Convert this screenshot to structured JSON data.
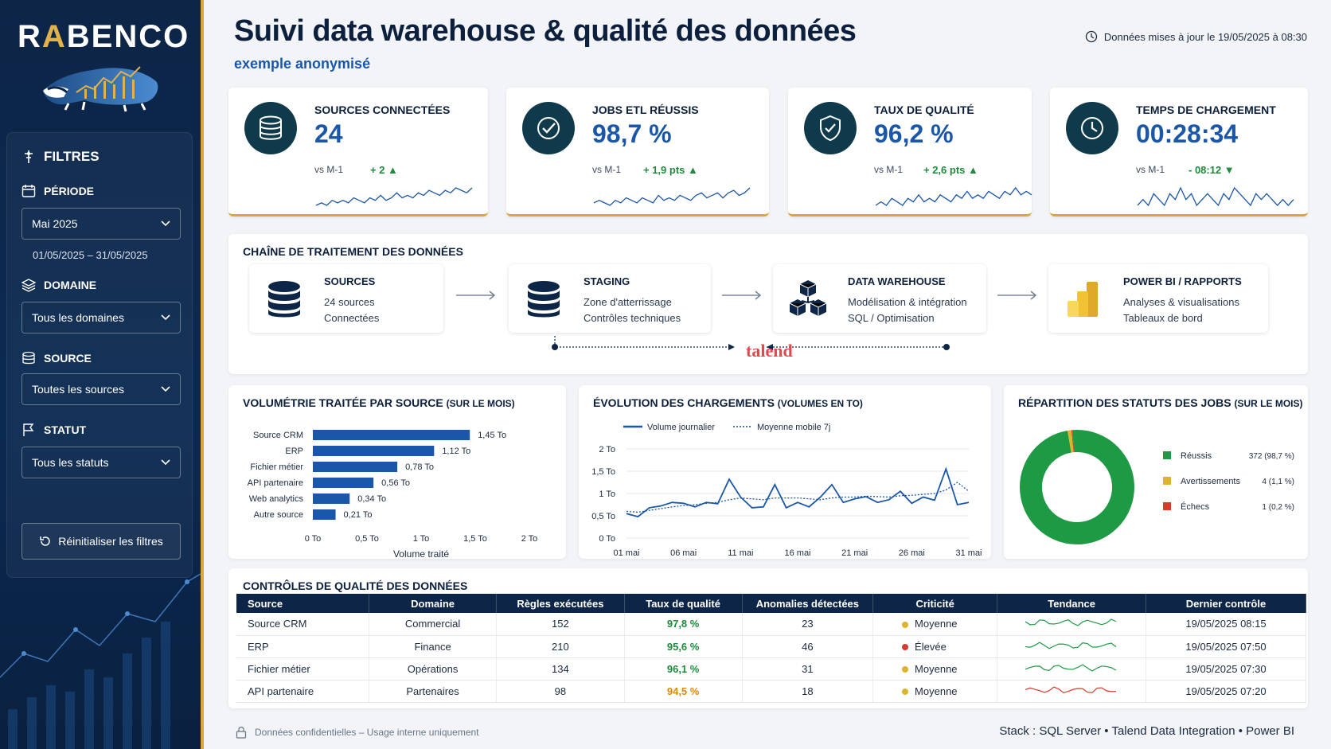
{
  "brand": {
    "logo_pre": "R",
    "logo_accent": "A",
    "logo_post": "BENCO",
    "accent_color": "#d9a83a",
    "navy": "#0d2547"
  },
  "header": {
    "title": "Suivi data warehouse & qualité des données",
    "subtitle": "exemple anonymisé",
    "updated": "Données mises à jour le 19/05/2025 à 08:30"
  },
  "filters": {
    "title": "FILTRES",
    "period_label": "PÉRIODE",
    "period_value": "Mai 2025",
    "period_range": "01/05/2025 – 31/05/2025",
    "domain_label": "DOMAINE",
    "domain_value": "Tous les domaines",
    "source_label": "SOURCE",
    "source_value": "Toutes les sources",
    "status_label": "STATUT",
    "status_value": "Tous les statuts",
    "reset_label": "Réinitialiser les filtres"
  },
  "kpis": [
    {
      "label": "SOURCES CONNECTÉES",
      "value": "24",
      "vs": "vs M-1",
      "delta": "+ 2 ▲",
      "icon": "database-icon",
      "spark": [
        3,
        4,
        3,
        5,
        4,
        5,
        4,
        6,
        5,
        4,
        6,
        5,
        7,
        5,
        6,
        8,
        6,
        7,
        6,
        8,
        7,
        9,
        8,
        7,
        9,
        8,
        10,
        9,
        8,
        10
      ]
    },
    {
      "label": "JOBS ETL RÉUSSIS",
      "value": "98,7 %",
      "vs": "vs M-1",
      "delta": "+ 1,9 pts ▲",
      "icon": "check-circle-icon",
      "spark": [
        4,
        5,
        4,
        3,
        5,
        4,
        6,
        5,
        4,
        6,
        5,
        4,
        7,
        5,
        6,
        5,
        7,
        6,
        5,
        7,
        8,
        6,
        7,
        8,
        6,
        8,
        9,
        7,
        8,
        10
      ]
    },
    {
      "label": "TAUX DE QUALITÉ",
      "value": "96,2 %",
      "vs": "vs M-1",
      "delta": "+ 2,6 pts ▲",
      "icon": "shield-check-icon",
      "spark": [
        5,
        6,
        5,
        7,
        6,
        5,
        7,
        6,
        8,
        6,
        7,
        6,
        8,
        7,
        6,
        8,
        7,
        9,
        7,
        8,
        7,
        9,
        8,
        7,
        9,
        8,
        10,
        8,
        9,
        8
      ]
    },
    {
      "label": "TEMPS DE CHARGEMENT",
      "value": "00:28:34",
      "vs": "vs M-1",
      "delta": "- 08:12 ▼",
      "icon": "clock-icon",
      "spark": [
        6,
        7,
        6,
        8,
        7,
        6,
        8,
        7,
        9,
        7,
        8,
        6,
        7,
        8,
        7,
        6,
        8,
        7,
        9,
        8,
        7,
        6,
        8,
        7,
        8,
        7,
        6,
        7,
        6,
        7
      ]
    }
  ],
  "pipeline": {
    "title": "CHAÎNE DE TRAITEMENT DES DONNÉES",
    "steps": [
      {
        "title": "SOURCES",
        "line1": "24 sources",
        "line2": "Connectées",
        "icon": "database-icon"
      },
      {
        "title": "STAGING",
        "line1": "Zone d'atterrissage",
        "line2": "Contrôles techniques",
        "icon": "database-icon"
      },
      {
        "title": "DATA WAREHOUSE",
        "line1": "Modélisation & intégration",
        "line2": "SQL / Optimisation",
        "icon": "cubes-icon"
      },
      {
        "title": "POWER BI / RAPPORTS",
        "line1": "Analyses & visualisations",
        "line2": "Tableaux de bord",
        "icon": "powerbi-icon"
      }
    ],
    "talend": "talend"
  },
  "chart_data": [
    {
      "type": "bar",
      "title": "VOLUMÉTRIE TRAITÉE PAR SOURCE",
      "title_suffix": "(SUR LE MOIS)",
      "xlabel": "Volume traité",
      "orientation": "horizontal",
      "categories": [
        "Source CRM",
        "ERP",
        "Fichier métier",
        "API partenaire",
        "Web analytics",
        "Autre source"
      ],
      "values": [
        1.45,
        1.12,
        0.78,
        0.56,
        0.34,
        0.21
      ],
      "value_labels": [
        "1,45 To",
        "1,12 To",
        "0,78 To",
        "0,56 To",
        "0,34 To",
        "0,21 To"
      ],
      "xticks": [
        "0 To",
        "0,5 To",
        "1 To",
        "1,5 To",
        "2 To"
      ],
      "xlim": [
        0,
        2
      ]
    },
    {
      "type": "line",
      "title": "ÉVOLUTION DES CHARGEMENTS",
      "title_suffix": "(VOLUMES EN TO)",
      "series": [
        {
          "name": "Volume journalier",
          "values": [
            0.55,
            0.48,
            0.68,
            0.72,
            0.8,
            0.78,
            0.7,
            0.8,
            0.77,
            1.32,
            0.92,
            0.68,
            0.7,
            1.2,
            0.68,
            0.8,
            0.7,
            0.92,
            1.2,
            0.8,
            0.88,
            0.93,
            0.8,
            0.86,
            1.05,
            0.78,
            0.92,
            0.85,
            1.55,
            0.75,
            0.8
          ]
        },
        {
          "name": "Moyenne mobile 7j",
          "values": [
            0.6,
            0.58,
            0.62,
            0.66,
            0.7,
            0.73,
            0.75,
            0.78,
            0.8,
            0.86,
            0.9,
            0.88,
            0.86,
            0.9,
            0.9,
            0.9,
            0.88,
            0.86,
            0.9,
            0.92,
            0.92,
            0.94,
            0.93,
            0.92,
            0.95,
            0.96,
            0.98,
            1.0,
            1.08,
            1.25,
            1.05
          ]
        }
      ],
      "xticks": [
        "01 mai",
        "06 mai",
        "11 mai",
        "16 mai",
        "21 mai",
        "26 mai",
        "31 mai"
      ],
      "yticks": [
        "0 To",
        "0,5 To",
        "1 To",
        "1,5 To",
        "2 To"
      ],
      "ylim": [
        0,
        2
      ]
    },
    {
      "type": "pie",
      "title": "RÉPARTITION DES STATUTS DES JOBS",
      "title_suffix": "(SUR LE MOIS)",
      "labels": [
        "Réussis",
        "Avertissements",
        "Échecs"
      ],
      "values": [
        372,
        4,
        1
      ],
      "value_labels": [
        "372 (98,7 %)",
        "4 (1,1 %)",
        "1 (0,2 %)"
      ],
      "colors": [
        "#1e9a45",
        "#e0b42a",
        "#d93a2b"
      ]
    }
  ],
  "quality": {
    "title": "CONTRÔLES DE QUALITÉ DES DONNÉES",
    "headers": [
      "Source",
      "Domaine",
      "Règles exécutées",
      "Taux de qualité",
      "Anomalies détectées",
      "Criticité",
      "Tendance",
      "Dernier contrôle"
    ],
    "rows": [
      {
        "source": "Source CRM",
        "domain": "Commercial",
        "rules": "152",
        "rate": "97,8 %",
        "rate_color": "green",
        "anomalies": "23",
        "crit": "Moyenne",
        "crit_color": "#e0b42a",
        "trend_color": "#1e9a45",
        "last": "19/05/2025 08:15"
      },
      {
        "source": "ERP",
        "domain": "Finance",
        "rules": "210",
        "rate": "95,6 %",
        "rate_color": "green",
        "anomalies": "46",
        "crit": "Élevée",
        "crit_color": "#d93a2b",
        "trend_color": "#1e9a45",
        "last": "19/05/2025 07:50"
      },
      {
        "source": "Fichier métier",
        "domain": "Opérations",
        "rules": "134",
        "rate": "96,1 %",
        "rate_color": "green",
        "anomalies": "31",
        "crit": "Moyenne",
        "crit_color": "#e0b42a",
        "trend_color": "#1e9a45",
        "last": "19/05/2025 07:30"
      },
      {
        "source": "API partenaire",
        "domain": "Partenaires",
        "rules": "98",
        "rate": "94,5 %",
        "rate_color": "orange",
        "anomalies": "18",
        "crit": "Moyenne",
        "crit_color": "#e0b42a",
        "trend_color": "#d93a2b",
        "last": "19/05/2025 07:20"
      }
    ]
  },
  "footer": {
    "confidential": "Données confidentielles – Usage interne uniquement",
    "stack": "Stack : SQL Server • Talend Data Integration • Power BI"
  }
}
